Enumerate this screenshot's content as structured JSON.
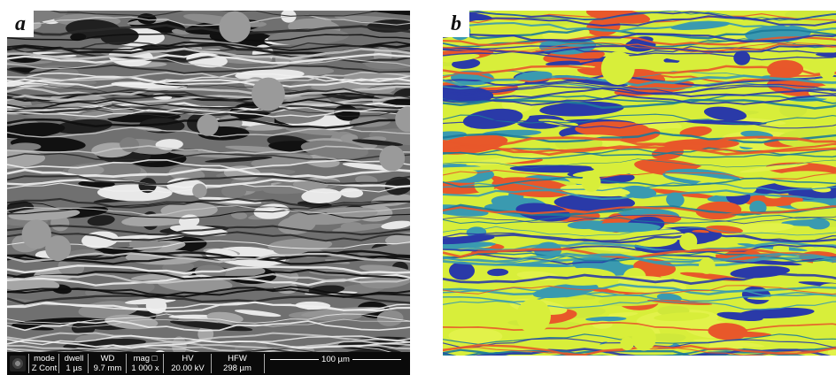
{
  "panels": [
    {
      "label": "a"
    },
    {
      "label": "b"
    }
  ],
  "databar": {
    "columns": [
      {
        "header": "mode",
        "value": "Z Cont"
      },
      {
        "header": "dwell",
        "value": "1 µs"
      },
      {
        "header": "WD",
        "value": "9.7 mm"
      },
      {
        "header": "mag □",
        "value": "1 000 x"
      },
      {
        "header": "HV",
        "value": "20.00 kV"
      },
      {
        "header": "HFW",
        "value": "298 µm"
      }
    ],
    "scale_label": "100 µm"
  },
  "colors": {
    "sem_background": "#6f6f6f",
    "map_yellow": "#d8ee3a",
    "map_blue": "#2a3aa8",
    "map_orange": "#e8582a",
    "map_cyan": "#3a9ab0"
  }
}
